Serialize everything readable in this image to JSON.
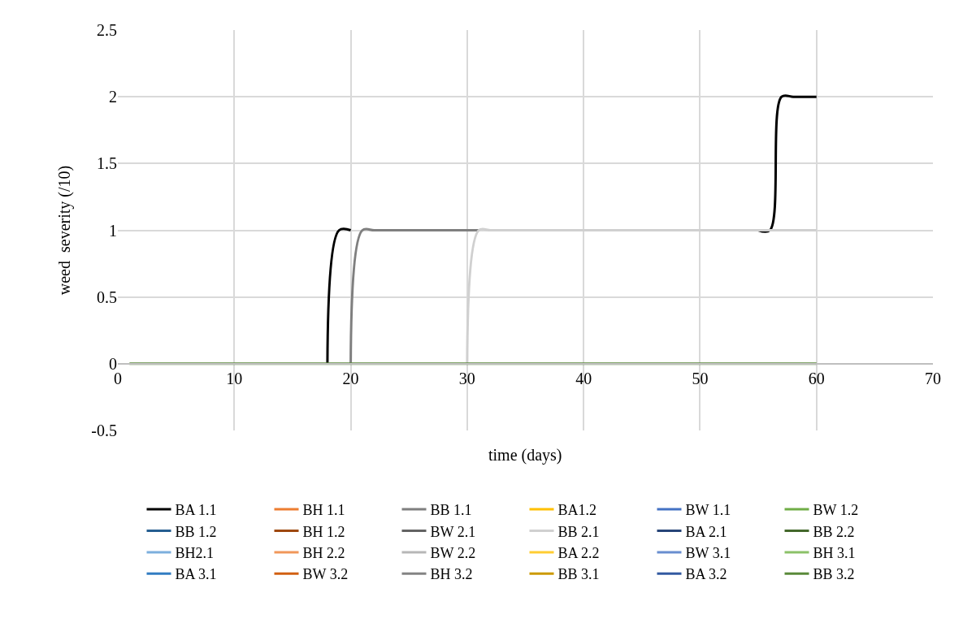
{
  "chart_data": {
    "type": "line",
    "xlabel": "time (days)",
    "ylabel": "weed  severity (/10)",
    "x": [
      1,
      2,
      3,
      4,
      5,
      6,
      7,
      8,
      9,
      10,
      11,
      12,
      13,
      14,
      15,
      16,
      17,
      18,
      19,
      20,
      21,
      22,
      23,
      24,
      25,
      26,
      27,
      28,
      29,
      30,
      31,
      32,
      33,
      34,
      35,
      36,
      37,
      38,
      39,
      40,
      41,
      42,
      43,
      44,
      45,
      46,
      47,
      48,
      49,
      50,
      51,
      52,
      53,
      54,
      55,
      56,
      57,
      58,
      59,
      60
    ],
    "xlim": [
      0,
      70
    ],
    "xticks": [
      0,
      10,
      20,
      30,
      40,
      50,
      60,
      70
    ],
    "ylim": [
      -0.5,
      2.5
    ],
    "yticks": [
      -0.5,
      0,
      0.5,
      1,
      1.5,
      2,
      2.5
    ],
    "grid": true,
    "legend": "bottom",
    "marker": "none",
    "line_style": "solid",
    "series": [
      {
        "name": "BA 1.1",
        "color": "#000000",
        "values": [
          null,
          null,
          null,
          null,
          null,
          null,
          null,
          null,
          null,
          null,
          null,
          null,
          null,
          null,
          null,
          null,
          null,
          0,
          1,
          1,
          null,
          null,
          null,
          null,
          null,
          null,
          null,
          null,
          null,
          null,
          null,
          null,
          null,
          null,
          null,
          null,
          null,
          null,
          null,
          null,
          null,
          null,
          null,
          null,
          null,
          null,
          null,
          null,
          null,
          null,
          null,
          null,
          null,
          null,
          1,
          1,
          2,
          2,
          2,
          2
        ]
      },
      {
        "name": "BH 1.1",
        "color": "#ed7d31",
        "values": [
          null,
          null,
          null,
          null,
          null,
          null,
          null,
          null,
          null,
          null,
          null,
          null,
          null,
          null,
          null,
          null,
          null,
          null,
          null,
          null,
          null,
          null,
          null,
          null,
          null,
          null,
          null,
          null,
          null,
          null,
          null,
          null,
          null,
          null,
          null,
          null,
          null,
          null,
          null,
          null,
          null,
          null,
          null,
          null,
          null,
          null,
          null,
          null,
          null,
          null,
          null,
          null,
          null,
          null,
          null,
          null,
          null,
          null,
          null,
          null
        ]
      },
      {
        "name": "BB 1.1",
        "color": "#7f7f7f",
        "values": [
          null,
          null,
          null,
          null,
          null,
          null,
          null,
          null,
          null,
          null,
          null,
          null,
          null,
          null,
          null,
          null,
          null,
          null,
          null,
          0,
          1,
          1,
          1,
          1,
          1,
          1,
          1,
          1,
          1,
          1,
          1,
          null,
          null,
          null,
          null,
          null,
          null,
          null,
          null,
          null,
          null,
          null,
          null,
          null,
          null,
          null,
          null,
          null,
          null,
          null,
          null,
          null,
          null,
          null,
          null,
          null,
          null,
          null,
          null,
          null
        ]
      },
      {
        "name": "BA1.2",
        "color": "#ffc000",
        "values": [
          null,
          null,
          null,
          null,
          null,
          null,
          null,
          null,
          null,
          null,
          null,
          null,
          null,
          null,
          null,
          null,
          null,
          null,
          null,
          null,
          null,
          null,
          null,
          null,
          null,
          null,
          null,
          null,
          null,
          null,
          null,
          null,
          null,
          null,
          null,
          null,
          null,
          null,
          null,
          null,
          null,
          null,
          null,
          null,
          null,
          null,
          null,
          null,
          null,
          null,
          null,
          null,
          null,
          null,
          null,
          null,
          null,
          null,
          null,
          null
        ]
      },
      {
        "name": "BW 1.1",
        "color": "#4472c4",
        "values": [
          null,
          null,
          null,
          null,
          null,
          null,
          null,
          null,
          null,
          null,
          null,
          null,
          null,
          null,
          null,
          null,
          null,
          null,
          null,
          null,
          null,
          null,
          null,
          null,
          null,
          null,
          null,
          null,
          null,
          null,
          null,
          null,
          null,
          null,
          null,
          null,
          null,
          null,
          null,
          null,
          null,
          null,
          null,
          null,
          null,
          null,
          null,
          null,
          null,
          null,
          null,
          null,
          null,
          null,
          null,
          null,
          null,
          null,
          null,
          null
        ]
      },
      {
        "name": "BW 1.2",
        "color": "#70ad47",
        "values": [
          null,
          null,
          null,
          null,
          null,
          null,
          null,
          null,
          null,
          null,
          null,
          null,
          null,
          null,
          null,
          null,
          null,
          null,
          null,
          null,
          null,
          null,
          null,
          null,
          null,
          null,
          null,
          null,
          null,
          null,
          null,
          null,
          null,
          null,
          null,
          null,
          null,
          null,
          null,
          null,
          null,
          null,
          null,
          null,
          null,
          null,
          null,
          null,
          null,
          null,
          null,
          null,
          null,
          null,
          null,
          null,
          null,
          null,
          null,
          null
        ]
      },
      {
        "name": "BB 1.2",
        "color": "#255e91",
        "values": [
          null,
          null,
          null,
          null,
          null,
          null,
          null,
          null,
          null,
          null,
          null,
          null,
          null,
          null,
          null,
          null,
          null,
          null,
          null,
          null,
          null,
          null,
          null,
          null,
          null,
          null,
          null,
          null,
          null,
          null,
          null,
          null,
          null,
          null,
          null,
          null,
          null,
          null,
          null,
          null,
          null,
          null,
          null,
          null,
          null,
          null,
          null,
          null,
          null,
          null,
          null,
          null,
          null,
          null,
          null,
          null,
          null,
          null,
          null,
          null
        ]
      },
      {
        "name": "BH 1.2",
        "color": "#9e480e",
        "values": [
          null,
          null,
          null,
          null,
          null,
          null,
          null,
          null,
          null,
          null,
          null,
          null,
          null,
          null,
          null,
          null,
          null,
          null,
          null,
          null,
          null,
          null,
          null,
          null,
          null,
          null,
          null,
          null,
          null,
          null,
          null,
          null,
          null,
          null,
          null,
          null,
          null,
          null,
          null,
          null,
          null,
          null,
          null,
          null,
          null,
          null,
          null,
          null,
          null,
          null,
          null,
          null,
          null,
          null,
          null,
          null,
          null,
          null,
          null,
          null
        ]
      },
      {
        "name": "BW 2.1",
        "color": "#636363",
        "values": [
          null,
          null,
          null,
          null,
          null,
          null,
          null,
          null,
          null,
          null,
          null,
          null,
          null,
          null,
          null,
          null,
          null,
          null,
          null,
          null,
          null,
          null,
          null,
          null,
          null,
          null,
          null,
          null,
          null,
          null,
          null,
          null,
          null,
          null,
          null,
          null,
          null,
          null,
          null,
          null,
          null,
          null,
          null,
          null,
          null,
          null,
          null,
          null,
          null,
          null,
          null,
          null,
          null,
          null,
          null,
          null,
          null,
          null,
          null,
          null
        ]
      },
      {
        "name": "BB 2.1",
        "color": "#d0d0d0",
        "values": [
          null,
          null,
          null,
          null,
          null,
          null,
          null,
          null,
          null,
          null,
          null,
          null,
          null,
          null,
          null,
          null,
          null,
          null,
          null,
          null,
          null,
          null,
          null,
          null,
          null,
          null,
          null,
          null,
          null,
          0,
          1,
          1,
          1,
          1,
          1,
          1,
          1,
          1,
          1,
          1,
          1,
          1,
          1,
          1,
          1,
          1,
          1,
          1,
          1,
          1,
          1,
          1,
          1,
          1,
          1,
          1,
          1,
          1,
          1,
          1
        ]
      },
      {
        "name": "BA 2.1",
        "color": "#264478",
        "values": [
          null,
          null,
          null,
          null,
          null,
          null,
          null,
          null,
          null,
          null,
          null,
          null,
          null,
          null,
          null,
          null,
          null,
          null,
          null,
          null,
          null,
          null,
          null,
          null,
          null,
          null,
          null,
          null,
          null,
          null,
          null,
          null,
          null,
          null,
          null,
          null,
          null,
          null,
          null,
          null,
          null,
          null,
          null,
          null,
          null,
          null,
          null,
          null,
          null,
          null,
          null,
          null,
          null,
          null,
          null,
          null,
          null,
          null,
          null,
          null
        ]
      },
      {
        "name": "BB 2.2",
        "color": "#43682b",
        "values": [
          null,
          null,
          null,
          null,
          null,
          null,
          null,
          null,
          null,
          null,
          null,
          null,
          null,
          null,
          null,
          null,
          null,
          null,
          null,
          null,
          null,
          null,
          null,
          null,
          null,
          null,
          null,
          null,
          null,
          null,
          null,
          null,
          null,
          null,
          null,
          null,
          null,
          null,
          null,
          null,
          null,
          null,
          null,
          null,
          null,
          null,
          null,
          null,
          null,
          null,
          null,
          null,
          null,
          null,
          null,
          null,
          null,
          null,
          null,
          null
        ]
      },
      {
        "name": "BH2.1",
        "color": "#7cafdd",
        "values": [
          null,
          null,
          null,
          null,
          null,
          null,
          null,
          null,
          null,
          null,
          null,
          null,
          null,
          null,
          null,
          null,
          null,
          null,
          null,
          null,
          null,
          null,
          null,
          null,
          null,
          null,
          null,
          null,
          null,
          null,
          null,
          null,
          null,
          null,
          null,
          null,
          null,
          null,
          null,
          null,
          null,
          null,
          null,
          null,
          null,
          null,
          null,
          null,
          null,
          null,
          null,
          null,
          null,
          null,
          null,
          null,
          null,
          null,
          null,
          null
        ]
      },
      {
        "name": "BH 2.2",
        "color": "#f1975a",
        "values": [
          null,
          null,
          null,
          null,
          null,
          null,
          null,
          null,
          null,
          null,
          null,
          null,
          null,
          null,
          null,
          null,
          null,
          null,
          null,
          null,
          null,
          null,
          null,
          null,
          null,
          null,
          null,
          null,
          null,
          null,
          null,
          null,
          null,
          null,
          null,
          null,
          null,
          null,
          null,
          null,
          null,
          null,
          null,
          null,
          null,
          null,
          null,
          null,
          null,
          null,
          null,
          null,
          null,
          null,
          null,
          null,
          null,
          null,
          null,
          null
        ]
      },
      {
        "name": "BW 2.2",
        "color": "#b7b7b7",
        "values": [
          null,
          null,
          null,
          null,
          null,
          null,
          null,
          null,
          null,
          null,
          null,
          null,
          null,
          null,
          null,
          null,
          null,
          null,
          null,
          null,
          null,
          null,
          null,
          null,
          null,
          null,
          null,
          null,
          null,
          null,
          null,
          null,
          null,
          null,
          null,
          null,
          null,
          null,
          null,
          null,
          null,
          null,
          null,
          null,
          null,
          null,
          null,
          null,
          null,
          null,
          null,
          null,
          null,
          null,
          null,
          null,
          null,
          null,
          null,
          null
        ]
      },
      {
        "name": "BA 2.2",
        "color": "#ffcd33",
        "values": [
          null,
          null,
          null,
          null,
          null,
          null,
          null,
          null,
          null,
          null,
          null,
          null,
          null,
          null,
          null,
          null,
          null,
          null,
          null,
          null,
          null,
          null,
          null,
          null,
          null,
          null,
          null,
          null,
          null,
          null,
          null,
          null,
          null,
          null,
          null,
          null,
          null,
          null,
          null,
          null,
          null,
          null,
          null,
          null,
          null,
          null,
          null,
          null,
          null,
          null,
          null,
          null,
          null,
          null,
          null,
          null,
          null,
          null,
          null,
          null
        ]
      },
      {
        "name": "BW 3.1",
        "color": "#698ed0",
        "values": [
          null,
          null,
          null,
          null,
          null,
          null,
          null,
          null,
          null,
          null,
          null,
          null,
          null,
          null,
          null,
          null,
          null,
          null,
          null,
          null,
          null,
          null,
          null,
          null,
          null,
          null,
          null,
          null,
          null,
          null,
          null,
          null,
          null,
          null,
          null,
          null,
          null,
          null,
          null,
          null,
          null,
          null,
          null,
          null,
          null,
          null,
          null,
          null,
          null,
          null,
          null,
          null,
          null,
          null,
          null,
          null,
          null,
          null,
          null,
          null
        ]
      },
      {
        "name": "BH 3.1",
        "color": "#8cc168",
        "values": [
          null,
          null,
          null,
          null,
          null,
          null,
          null,
          null,
          null,
          null,
          null,
          null,
          null,
          null,
          null,
          null,
          null,
          null,
          null,
          null,
          null,
          null,
          null,
          null,
          null,
          null,
          null,
          null,
          null,
          null,
          null,
          null,
          null,
          null,
          null,
          null,
          null,
          null,
          null,
          null,
          null,
          null,
          null,
          null,
          null,
          null,
          null,
          null,
          null,
          null,
          null,
          null,
          null,
          null,
          null,
          null,
          null,
          null,
          null,
          null
        ]
      },
      {
        "name": "BA 3.1",
        "color": "#327dc2",
        "values": [
          null,
          null,
          null,
          null,
          null,
          null,
          null,
          null,
          null,
          null,
          null,
          null,
          null,
          null,
          null,
          null,
          null,
          null,
          null,
          null,
          null,
          null,
          null,
          null,
          null,
          null,
          null,
          null,
          null,
          null,
          null,
          null,
          null,
          null,
          null,
          null,
          null,
          null,
          null,
          null,
          null,
          null,
          null,
          null,
          null,
          null,
          null,
          null,
          null,
          null,
          null,
          null,
          null,
          null,
          null,
          null,
          null,
          null,
          null,
          null
        ]
      },
      {
        "name": "BW 3.2",
        "color": "#d26012",
        "values": [
          null,
          null,
          null,
          null,
          null,
          null,
          null,
          null,
          null,
          null,
          null,
          null,
          null,
          null,
          null,
          null,
          null,
          null,
          null,
          null,
          null,
          null,
          null,
          null,
          null,
          null,
          null,
          null,
          null,
          null,
          null,
          null,
          null,
          null,
          null,
          null,
          null,
          null,
          null,
          null,
          null,
          null,
          null,
          null,
          null,
          null,
          null,
          null,
          null,
          null,
          null,
          null,
          null,
          null,
          null,
          null,
          null,
          null,
          null,
          null
        ]
      },
      {
        "name": "BH 3.2",
        "color": "#848484",
        "values": [
          null,
          null,
          null,
          null,
          null,
          null,
          null,
          null,
          null,
          null,
          null,
          null,
          null,
          null,
          null,
          null,
          null,
          null,
          null,
          null,
          null,
          null,
          null,
          null,
          null,
          null,
          null,
          null,
          null,
          null,
          null,
          null,
          null,
          null,
          null,
          null,
          null,
          null,
          null,
          null,
          null,
          null,
          null,
          null,
          null,
          null,
          null,
          null,
          null,
          null,
          null,
          null,
          null,
          null,
          null,
          null,
          null,
          null,
          null,
          null
        ]
      },
      {
        "name": "BB 3.1",
        "color": "#cc9a00",
        "values": [
          null,
          null,
          null,
          null,
          null,
          null,
          null,
          null,
          null,
          null,
          null,
          null,
          null,
          null,
          null,
          null,
          null,
          null,
          null,
          null,
          null,
          null,
          null,
          null,
          null,
          null,
          null,
          null,
          null,
          null,
          null,
          null,
          null,
          null,
          null,
          null,
          null,
          null,
          null,
          null,
          null,
          null,
          null,
          null,
          null,
          null,
          null,
          null,
          null,
          null,
          null,
          null,
          null,
          null,
          null,
          null,
          null,
          null,
          null,
          null
        ]
      },
      {
        "name": "BA 3.2",
        "color": "#335aa1",
        "values": [
          null,
          null,
          null,
          null,
          null,
          null,
          null,
          null,
          null,
          null,
          null,
          null,
          null,
          null,
          null,
          null,
          null,
          null,
          null,
          null,
          null,
          null,
          null,
          null,
          null,
          null,
          null,
          null,
          null,
          null,
          null,
          null,
          null,
          null,
          null,
          null,
          null,
          null,
          null,
          null,
          null,
          null,
          null,
          null,
          null,
          null,
          null,
          null,
          null,
          null,
          null,
          null,
          null,
          null,
          null,
          null,
          null,
          null,
          null,
          null
        ]
      },
      {
        "name": "BB 3.2",
        "color": "#5a8a3a",
        "values": [
          0,
          0,
          0,
          0,
          0,
          0,
          0,
          0,
          0,
          0,
          0,
          0,
          0,
          0,
          0,
          0,
          0,
          0,
          0,
          0,
          0,
          0,
          0,
          0,
          0,
          0,
          0,
          0,
          0,
          0,
          0,
          0,
          0,
          0,
          0,
          0,
          0,
          0,
          0,
          0,
          0,
          0,
          0,
          0,
          0,
          0,
          0,
          0,
          0,
          0,
          0,
          0,
          0,
          0,
          0,
          0,
          0,
          0,
          0,
          0
        ]
      }
    ]
  }
}
